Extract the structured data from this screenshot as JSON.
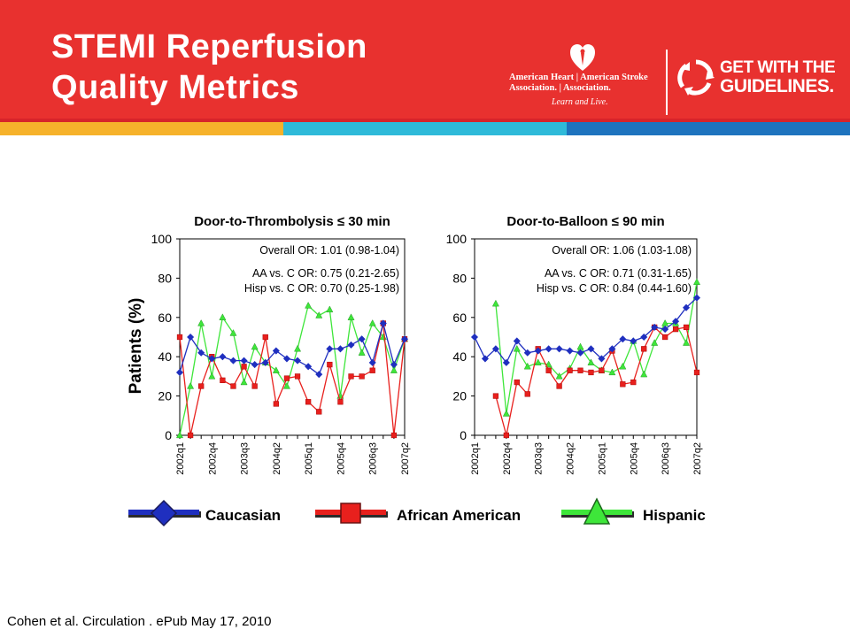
{
  "slide": {
    "title_line1": "STEMI Reperfusion",
    "title_line2": "Quality Metrics",
    "citation": "Cohen et al. Circulation . ePub May 17, 2010"
  },
  "logos": {
    "aha_line1": "American Heart | American Stroke",
    "aha_line2": "Association. | Association.",
    "aha_tagline": "Learn and Live.",
    "gwtg_line1": "GET WITH THE",
    "gwtg_line2": "GUIDELINES."
  },
  "colors": {
    "header_red": "#e8312f",
    "caucasian": "#1f2fbf",
    "african_american": "#e8201d",
    "hispanic": "#3ee63a"
  },
  "chart_data": [
    {
      "type": "line",
      "title": "Door-to-Thrombolysis ≤ 30 min",
      "ylabel": "Patients (%)",
      "ylim": [
        0,
        100
      ],
      "yticks": [
        0,
        20,
        40,
        60,
        80,
        100
      ],
      "x_tick_labels": [
        "2002q1",
        "2002q4",
        "2003q3",
        "2004q2",
        "2005q1",
        "2005q4",
        "2006q3",
        "2007q2"
      ],
      "annotations": [
        "Overall OR: 1.01 (0.98-1.04)",
        "AA vs. C OR: 0.75 (0.21-2.65)",
        "Hisp vs. C OR: 0.70 (0.25-1.98)"
      ],
      "series": [
        {
          "name": "Caucasian",
          "values": [
            32,
            50,
            42,
            39,
            40,
            38,
            38,
            36,
            37,
            43,
            39,
            38,
            35,
            31,
            44,
            44,
            46,
            49,
            37,
            57,
            36,
            49
          ]
        },
        {
          "name": "African American",
          "values": [
            50,
            0,
            25,
            40,
            28,
            25,
            35,
            25,
            50,
            16,
            29,
            30,
            17,
            12,
            36,
            17,
            30,
            30,
            33,
            57,
            0,
            49
          ]
        },
        {
          "name": "Hispanic",
          "values": [
            0,
            25,
            57,
            30,
            60,
            52,
            27,
            45,
            37,
            33,
            25,
            44,
            66,
            61,
            64,
            20,
            60,
            42,
            57,
            50,
            33,
            49
          ]
        }
      ]
    },
    {
      "type": "line",
      "title": "Door-to-Balloon ≤ 90 min",
      "ylabel": "",
      "ylim": [
        0,
        100
      ],
      "yticks": [
        0,
        20,
        40,
        60,
        80,
        100
      ],
      "x_tick_labels": [
        "2002q1",
        "2002q4",
        "2003q3",
        "2004q2",
        "2005q1",
        "2005q4",
        "2006q3",
        "2007q2"
      ],
      "annotations": [
        "Overall OR: 1.06 (1.03-1.08)",
        "AA vs. C OR: 0.71 (0.31-1.65)",
        "Hisp vs. C OR: 0.84 (0.44-1.60)"
      ],
      "series": [
        {
          "name": "Caucasian",
          "values": [
            50,
            39,
            44,
            37,
            48,
            42,
            43,
            44,
            44,
            43,
            42,
            44,
            39,
            44,
            49,
            48,
            50,
            55,
            54,
            58,
            65,
            70
          ]
        },
        {
          "name": "African American",
          "values": [
            null,
            null,
            20,
            0,
            27,
            21,
            44,
            33,
            25,
            33,
            33,
            32,
            33,
            43,
            26,
            27,
            44,
            55,
            50,
            54,
            55,
            32
          ]
        },
        {
          "name": "Hispanic",
          "values": [
            null,
            null,
            67,
            11,
            44,
            35,
            37,
            36,
            30,
            34,
            45,
            37,
            33,
            32,
            35,
            48,
            31,
            47,
            57,
            57,
            47,
            78
          ]
        }
      ]
    }
  ],
  "legend": [
    {
      "name": "Caucasian",
      "marker": "diamond",
      "color": "#1f2fbf"
    },
    {
      "name": "African American",
      "marker": "square",
      "color": "#e8201d"
    },
    {
      "name": "Hispanic",
      "marker": "triangle",
      "color": "#3ee63a"
    }
  ]
}
